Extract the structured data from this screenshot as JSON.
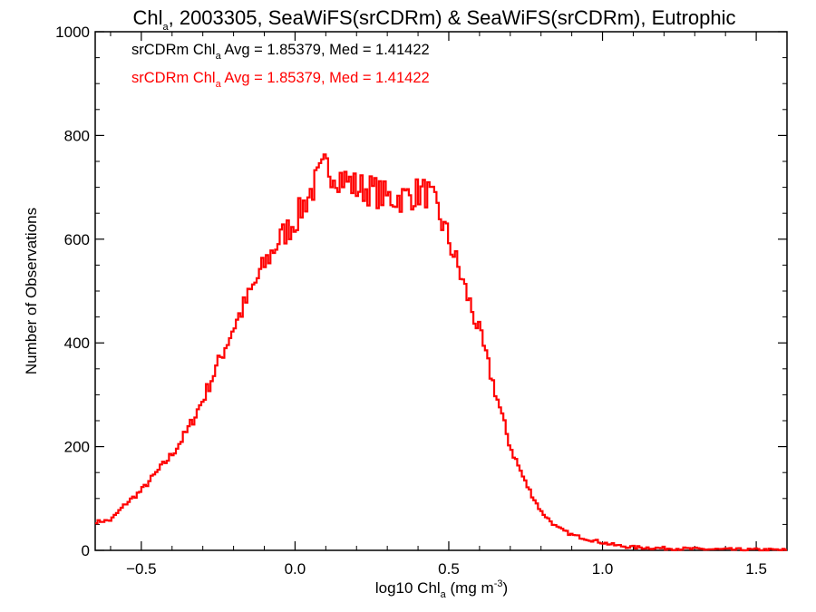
{
  "chart_data": {
    "type": "histogram-step",
    "title": {
      "main": "Chl",
      "sub": "a",
      "rest": ", 2003305, SeaWiFS(srCDRm) & SeaWiFS(srCDRm), Eutrophic"
    },
    "xlabel": {
      "pre": "log10 Chl",
      "sub": "a",
      "mid": " (mg m",
      "sup": "-3",
      "post": ")"
    },
    "ylabel": "Number of Observations",
    "xlim": [
      -0.65,
      1.6
    ],
    "ylim": [
      0,
      1000
    ],
    "xticks": [
      -0.5,
      0.0,
      0.5,
      1.0,
      1.5
    ],
    "xtick_labels": [
      "−0.5",
      "0.0",
      "0.5",
      "1.0",
      "1.5"
    ],
    "yticks": [
      0,
      200,
      400,
      600,
      800,
      1000
    ],
    "ytick_labels": [
      "0",
      "200",
      "400",
      "600",
      "800",
      "1000"
    ],
    "legend": [
      {
        "pre": "srCDRm Chl",
        "sub": "a",
        "post": " Avg = 1.85379, Med = 1.41422",
        "color": "#000000"
      },
      {
        "pre": "srCDRm Chl",
        "sub": "a",
        "post": " Avg = 1.85379, Med = 1.41422",
        "color": "#ff0000"
      }
    ],
    "series": [
      {
        "color": "#ff0000",
        "points": [
          [
            -0.65,
            55
          ],
          [
            -0.6,
            58
          ],
          [
            -0.55,
            90
          ],
          [
            -0.5,
            115
          ],
          [
            -0.45,
            150
          ],
          [
            -0.4,
            185
          ],
          [
            -0.35,
            230
          ],
          [
            -0.3,
            290
          ],
          [
            -0.25,
            360
          ],
          [
            -0.2,
            430
          ],
          [
            -0.15,
            490
          ],
          [
            -0.1,
            550
          ],
          [
            -0.05,
            600
          ],
          [
            0.0,
            635
          ],
          [
            0.05,
            690
          ],
          [
            0.1,
            740
          ],
          [
            0.15,
            720
          ],
          [
            0.2,
            700
          ],
          [
            0.25,
            695
          ],
          [
            0.3,
            680
          ],
          [
            0.35,
            680
          ],
          [
            0.4,
            690
          ],
          [
            0.43,
            690
          ],
          [
            0.46,
            660
          ],
          [
            0.5,
            600
          ],
          [
            0.55,
            510
          ],
          [
            0.6,
            420
          ],
          [
            0.65,
            310
          ],
          [
            0.7,
            200
          ],
          [
            0.75,
            130
          ],
          [
            0.8,
            75
          ],
          [
            0.85,
            45
          ],
          [
            0.9,
            30
          ],
          [
            0.95,
            22
          ],
          [
            1.0,
            15
          ],
          [
            1.05,
            9
          ],
          [
            1.1,
            6
          ],
          [
            1.2,
            4
          ],
          [
            1.3,
            2.5
          ],
          [
            1.4,
            1.5
          ],
          [
            1.5,
            1
          ],
          [
            1.6,
            0.5
          ]
        ]
      }
    ]
  }
}
